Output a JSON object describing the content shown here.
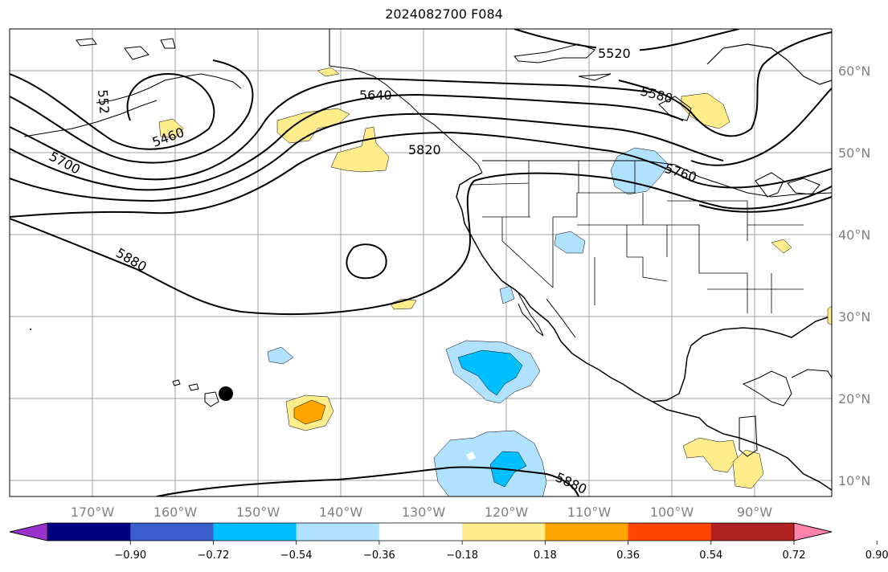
{
  "title": "2024082700 F084",
  "map": {
    "lon_labels": [
      "170°W",
      "160°W",
      "150°W",
      "140°W",
      "130°W",
      "120°W",
      "110°W",
      "100°W",
      "90°W"
    ],
    "lat_labels": [
      "60°N",
      "50°N",
      "40°N",
      "30°N",
      "20°N",
      "10°N"
    ],
    "contour_labels": [
      "5520",
      "5580",
      "5640",
      "5460",
      "552",
      "5820",
      "5700",
      "5760",
      "5880",
      "5880"
    ]
  },
  "colorbar": {
    "ticks": [
      "−0.90",
      "−0.72",
      "−0.54",
      "−0.36",
      "−0.18",
      "0.18",
      "0.36",
      "0.54",
      "0.72",
      "0.90"
    ],
    "colors": [
      "#9932CC",
      "#000080",
      "#3A5FCD",
      "#00BFFF",
      "#B0E2FF",
      "#FFFFFF",
      "#FFEC8B",
      "#FFA500",
      "#FF4500",
      "#B22222",
      "#FF82AB"
    ]
  }
}
